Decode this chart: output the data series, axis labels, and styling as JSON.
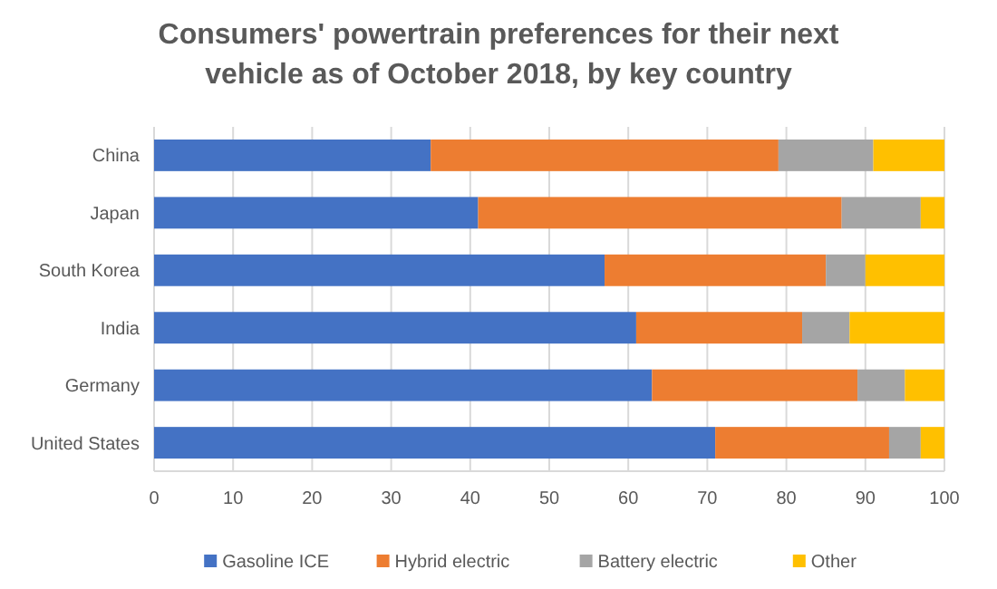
{
  "chart_data": {
    "type": "bar",
    "orientation": "horizontal",
    "stacked": true,
    "title": "Consumers' powertrain preferences for their next vehicle as of October 2018, by key country",
    "categories": [
      "China",
      "Japan",
      "South Korea",
      "India",
      "Germany",
      "United States"
    ],
    "series": [
      {
        "name": "Gasoline ICE",
        "color": "#4472c4",
        "values": [
          35,
          41,
          57,
          61,
          63,
          71
        ]
      },
      {
        "name": "Hybrid electric",
        "color": "#ed7d31",
        "values": [
          44,
          46,
          28,
          21,
          26,
          22
        ]
      },
      {
        "name": "Battery electric",
        "color": "#a5a5a5",
        "values": [
          12,
          10,
          5,
          6,
          6,
          4
        ]
      },
      {
        "name": "Other",
        "color": "#ffc000",
        "values": [
          9,
          3,
          10,
          12,
          5,
          3
        ]
      }
    ],
    "xlim": [
      0,
      100
    ],
    "xticks": [
      0,
      10,
      20,
      30,
      40,
      50,
      60,
      70,
      80,
      90,
      100
    ],
    "grid": "x",
    "legend": "bottom"
  }
}
